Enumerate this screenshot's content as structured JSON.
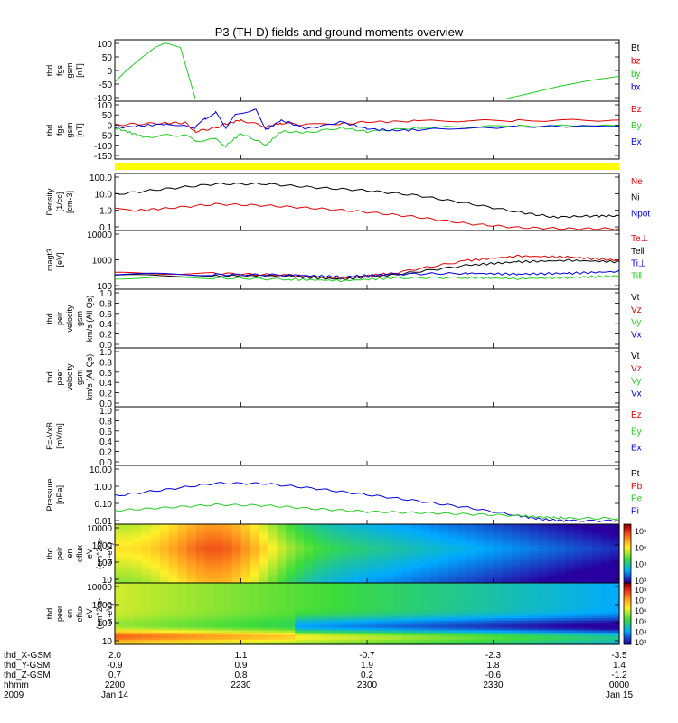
{
  "title": "P3 (TH-D) fields and ground moments overview",
  "colors": {
    "black": "#000000",
    "red": "#e00000",
    "green": "#22cc22",
    "blue": "#0000dd",
    "yellow": "#ffff00"
  },
  "chart_data": [
    {
      "id": "fgs",
      "type": "line",
      "ylabel": [
        "thd",
        "fgs",
        "gsm",
        "[nT]"
      ],
      "yticks": [
        "100",
        "50",
        "0",
        "-50",
        "-100"
      ],
      "ylim": [
        -100,
        100
      ],
      "legend": [
        {
          "label": "Bt",
          "color": "black"
        },
        {
          "label": "bz",
          "color": "red"
        },
        {
          "label": "by",
          "color": "green"
        },
        {
          "label": "bx",
          "color": "blue"
        }
      ],
      "series": [
        {
          "name": "by",
          "color": "green",
          "x": [
            0,
            0.02,
            0.05,
            0.08,
            0.1,
            0.13,
            0.16
          ],
          "y": [
            -40,
            -5,
            40,
            80,
            95,
            80,
            -100
          ]
        },
        {
          "name": "by",
          "color": "green",
          "x": [
            0.77,
            0.82,
            0.88,
            0.94,
            1.0
          ],
          "y": [
            -100,
            -80,
            -55,
            -35,
            -20
          ]
        }
      ]
    },
    {
      "id": "fgs_gsm",
      "type": "line",
      "ylabel": [
        "thd",
        "fgs",
        "gsm",
        "[nT]"
      ],
      "yticks": [
        "100",
        "50",
        "0",
        "-50",
        "-100",
        "-150"
      ],
      "ylim": [
        -175,
        110
      ],
      "legend": [
        {
          "label": "Bz",
          "color": "red"
        },
        {
          "label": "By",
          "color": "green"
        },
        {
          "label": "Bx",
          "color": "blue"
        }
      ],
      "series": [
        {
          "name": "Bz",
          "color": "red",
          "x": [
            0,
            0.05,
            0.1,
            0.14,
            0.16,
            0.2,
            0.22,
            0.25,
            0.3,
            0.33,
            0.38,
            0.45,
            0.5,
            0.6,
            0.8,
            1.0
          ],
          "y": [
            -5,
            0,
            5,
            5,
            -40,
            -20,
            0,
            20,
            -15,
            5,
            -5,
            0,
            10,
            15,
            18,
            20
          ]
        },
        {
          "name": "By",
          "color": "green",
          "x": [
            0,
            0.03,
            0.06,
            0.1,
            0.14,
            0.16,
            0.2,
            0.22,
            0.25,
            0.3,
            0.33,
            0.38,
            0.45,
            0.5,
            0.6,
            0.8,
            1.0
          ],
          "y": [
            -20,
            -45,
            -70,
            -60,
            -60,
            -90,
            -80,
            -115,
            -50,
            -110,
            -40,
            -45,
            -20,
            -40,
            -20,
            -10,
            -10
          ]
        },
        {
          "name": "Bx",
          "color": "blue",
          "x": [
            0,
            0.05,
            0.1,
            0.14,
            0.16,
            0.18,
            0.2,
            0.22,
            0.24,
            0.28,
            0.3,
            0.33,
            0.38,
            0.45,
            0.5,
            0.55,
            0.6,
            0.8,
            1.0
          ],
          "y": [
            -20,
            -10,
            0,
            -5,
            -20,
            30,
            60,
            -20,
            50,
            80,
            -30,
            20,
            -25,
            10,
            -25,
            -35,
            -30,
            -15,
            -10
          ]
        }
      ]
    },
    {
      "id": "density",
      "type": "line",
      "ylabel": [
        "Density",
        "[1/cc]",
        "[cm-3]"
      ],
      "log": true,
      "yticks": [
        "100.0",
        "10.0",
        "1.0",
        "0.1"
      ],
      "ylim": [
        0.06,
        100
      ],
      "legend": [
        {
          "label": "Ne",
          "color": "red"
        },
        {
          "label": "Ni",
          "color": "black"
        },
        {
          "label": "Npot",
          "color": "blue"
        }
      ],
      "series": [
        {
          "name": "Ni",
          "color": "black",
          "x": [
            0,
            0.1,
            0.2,
            0.3,
            0.4,
            0.5,
            0.6,
            0.7,
            0.8,
            0.87,
            0.95,
            1.0
          ],
          "y": [
            7,
            15,
            30,
            30,
            18,
            12,
            6,
            2,
            0.6,
            0.3,
            0.35,
            0.35
          ]
        },
        {
          "name": "Ne",
          "color": "red",
          "x": [
            0,
            0.03,
            0.1,
            0.2,
            0.3,
            0.4,
            0.5,
            0.6,
            0.7,
            0.8,
            0.9,
            1.0
          ],
          "y": [
            1,
            0.7,
            1,
            1.8,
            1.5,
            1,
            0.6,
            0.3,
            0.12,
            0.07,
            0.06,
            0.06
          ]
        }
      ]
    },
    {
      "id": "temp",
      "type": "line",
      "ylabel": [
        "magt3",
        "[eV]"
      ],
      "log": true,
      "yticks": [
        "10000",
        "1000",
        "100"
      ],
      "ylim": [
        90,
        10000
      ],
      "legend": [
        {
          "label": "Te⊥",
          "color": "red"
        },
        {
          "label": "Te‖",
          "color": "black"
        },
        {
          "label": "Ti⊥",
          "color": "blue"
        },
        {
          "label": "Ti‖",
          "color": "green"
        }
      ],
      "series": [
        {
          "name": "Te⊥",
          "color": "red",
          "x": [
            0,
            0.2,
            0.35,
            0.45,
            0.55,
            0.7,
            0.8,
            0.9,
            1.0
          ],
          "y": [
            300,
            300,
            250,
            200,
            300,
            900,
            1300,
            1200,
            900
          ]
        },
        {
          "name": "Te‖",
          "color": "black",
          "x": [
            0,
            0.2,
            0.35,
            0.45,
            0.55,
            0.7,
            0.8,
            0.9,
            1.0
          ],
          "y": [
            250,
            240,
            230,
            180,
            260,
            600,
            800,
            900,
            800
          ]
        },
        {
          "name": "Ti⊥",
          "color": "blue",
          "x": [
            0,
            0.2,
            0.35,
            0.45,
            0.55,
            0.7,
            0.8,
            0.9,
            1.0
          ],
          "y": [
            280,
            270,
            260,
            220,
            280,
            300,
            280,
            300,
            350
          ]
        },
        {
          "name": "Ti‖",
          "color": "green",
          "x": [
            0,
            0.2,
            0.35,
            0.45,
            0.55,
            0.7,
            0.8,
            0.9,
            1.0
          ],
          "y": [
            200,
            200,
            180,
            160,
            200,
            210,
            190,
            210,
            240
          ]
        }
      ]
    },
    {
      "id": "peir_vel",
      "type": "line",
      "ylabel": [
        "thd",
        "peir",
        "velocity",
        "gsm",
        "km/s (All Qs)"
      ],
      "yticks": [
        "1.0",
        "0.8",
        "0.6",
        "0.4",
        "0.2",
        "0.0"
      ],
      "ylim": [
        0,
        1
      ],
      "legend": [
        {
          "label": "Vt",
          "color": "black"
        },
        {
          "label": "Vz",
          "color": "red"
        },
        {
          "label": "Vy",
          "color": "green"
        },
        {
          "label": "Vx",
          "color": "blue"
        }
      ],
      "series": []
    },
    {
      "id": "peer_vel",
      "type": "line",
      "ylabel": [
        "thd",
        "peer",
        "velocity",
        "gsm",
        "km/s (All Qs)"
      ],
      "yticks": [
        "1.0",
        "0.8",
        "0.6",
        "0.4",
        "0.2",
        "0.0"
      ],
      "ylim": [
        0,
        1
      ],
      "legend": [
        {
          "label": "Vt",
          "color": "black"
        },
        {
          "label": "Vz",
          "color": "red"
        },
        {
          "label": "Vy",
          "color": "green"
        },
        {
          "label": "Vx",
          "color": "blue"
        }
      ],
      "series": []
    },
    {
      "id": "efield",
      "type": "line",
      "ylabel": [
        "E=-VxB",
        "[mV/m]"
      ],
      "yticks": [
        "1.0",
        "0.8",
        "0.6",
        "0.4",
        "0.2",
        "0.0"
      ],
      "ylim": [
        0,
        1
      ],
      "legend": [
        {
          "label": "Ez",
          "color": "red"
        },
        {
          "label": "Ey",
          "color": "green"
        },
        {
          "label": "Ex",
          "color": "blue"
        }
      ],
      "series": []
    },
    {
      "id": "pressure",
      "type": "line",
      "ylabel": [
        "Pressure",
        "[nPa]"
      ],
      "log": true,
      "yticks": [
        "10.00",
        "1.00",
        "0.10",
        "0.01"
      ],
      "ylim": [
        0.008,
        15
      ],
      "legend": [
        {
          "label": "Pt",
          "color": "black"
        },
        {
          "label": "Pb",
          "color": "red"
        },
        {
          "label": "Pe",
          "color": "green"
        },
        {
          "label": "Pi",
          "color": "blue"
        }
      ],
      "series": [
        {
          "name": "Pi",
          "color": "blue",
          "x": [
            0,
            0.1,
            0.2,
            0.3,
            0.4,
            0.5,
            0.6,
            0.7,
            0.8,
            0.85,
            0.9,
            1.0
          ],
          "y": [
            0.3,
            0.7,
            1.7,
            1.6,
            0.8,
            0.35,
            0.15,
            0.06,
            0.02,
            0.012,
            0.01,
            0.01
          ]
        },
        {
          "name": "Pe",
          "color": "green",
          "x": [
            0,
            0.1,
            0.2,
            0.3,
            0.4,
            0.5,
            0.6,
            0.7,
            0.8,
            0.85,
            0.9,
            1.0
          ],
          "y": [
            0.04,
            0.06,
            0.09,
            0.08,
            0.05,
            0.035,
            0.03,
            0.025,
            0.02,
            0.016,
            0.014,
            0.014
          ]
        }
      ]
    },
    {
      "id": "peir_spec",
      "type": "heatmap",
      "ylabel": [
        "thd",
        "peir",
        "en",
        "eflux",
        "eV",
        "(cm^2-s-",
        "sr-eV)"
      ],
      "yticks": [
        "10000",
        "1000",
        "100",
        "10"
      ],
      "colorbar": {
        "labels": [
          "10⁶",
          "10⁵",
          "10⁴",
          "10³"
        ]
      }
    },
    {
      "id": "peer_spec",
      "type": "heatmap",
      "ylabel": [
        "thd",
        "peer",
        "en",
        "eflux",
        "eV",
        "(cm^2-s-",
        "sr-eV)"
      ],
      "yticks": [
        "10000",
        "1000",
        "100",
        "10"
      ],
      "colorbar": {
        "labels": [
          "10⁸",
          "10⁷",
          "10⁶",
          "10⁵",
          "10⁴",
          "10³"
        ]
      }
    }
  ],
  "xaxis": {
    "row_labels": [
      "thd_X-GSM",
      "thd_Y-GSM",
      "thd_Z-GSM",
      "hhmm",
      "2009"
    ],
    "ticks": [
      {
        "values": [
          "2.0",
          "-0.9",
          "0.7",
          "2200",
          "Jan 14"
        ]
      },
      {
        "values": [
          "1.1",
          "0.9",
          "0.8",
          "2230",
          ""
        ]
      },
      {
        "values": [
          "-0.7",
          "1.9",
          "0.2",
          "2300",
          ""
        ]
      },
      {
        "values": [
          "-2.3",
          "1.8",
          "-0.6",
          "2330",
          ""
        ]
      },
      {
        "values": [
          "-3.5",
          "1.4",
          "-1.2",
          "0000",
          "Jan 15"
        ]
      }
    ]
  }
}
